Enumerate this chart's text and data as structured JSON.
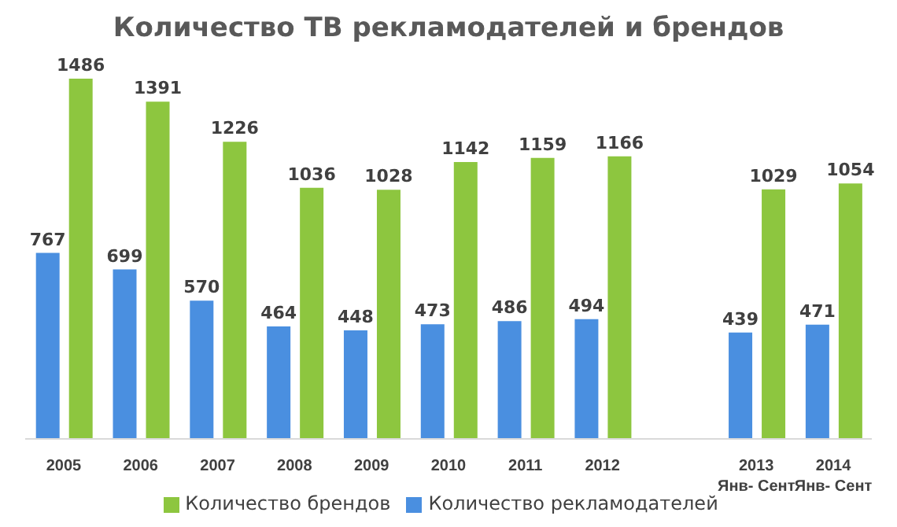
{
  "chart_data": {
    "type": "bar",
    "title": "Количество ТВ рекламодателей и брендов",
    "categories": [
      "2005",
      "2006",
      "2007",
      "2008",
      "2009",
      "2010",
      "2011",
      "2012",
      null,
      "2013\nЯнв- Сент",
      "2014\nЯнв- Сент"
    ],
    "series": [
      {
        "name": "Количество рекламодателей",
        "color": "#4a8fe0",
        "values": [
          767,
          699,
          570,
          464,
          448,
          473,
          486,
          494,
          null,
          439,
          471
        ]
      },
      {
        "name": "Количество брендов",
        "color": "#8dc63f",
        "values": [
          1486,
          1391,
          1226,
          1036,
          1028,
          1142,
          1159,
          1166,
          null,
          1029,
          1054
        ]
      }
    ],
    "data_labels": true,
    "legend": "bottom",
    "grid": false
  }
}
